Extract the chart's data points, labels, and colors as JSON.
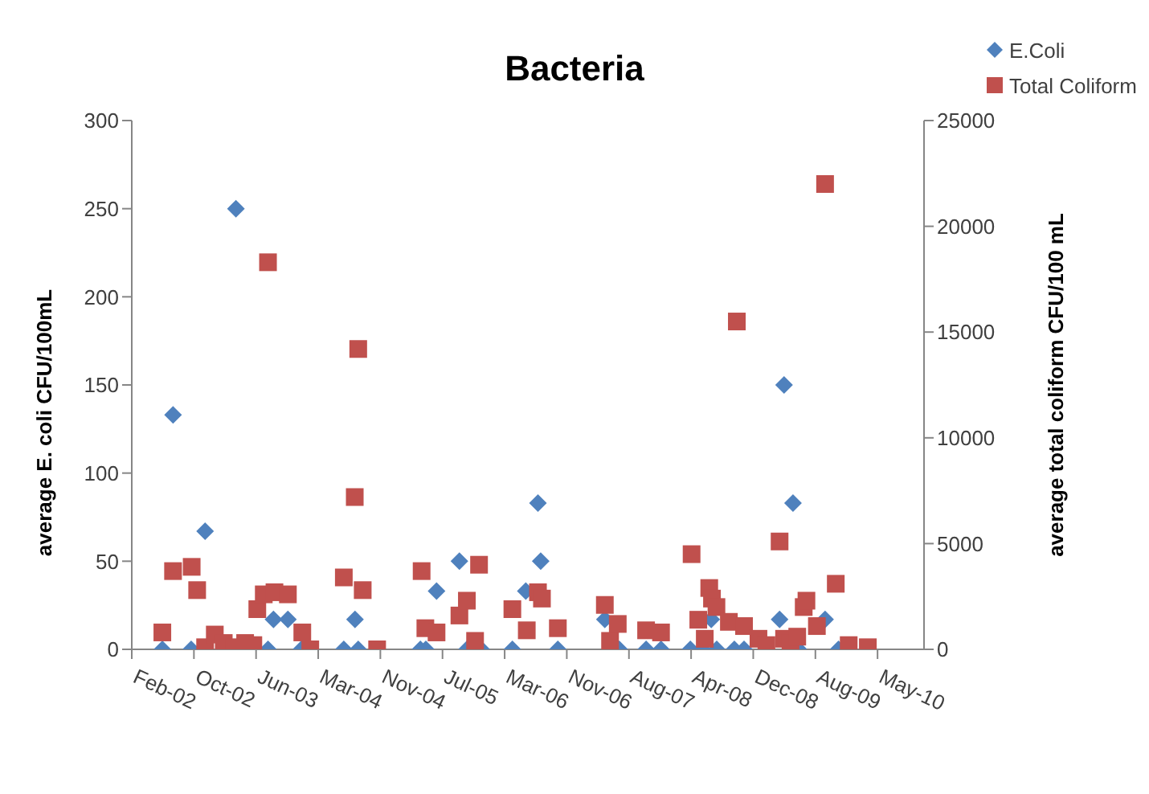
{
  "chart_data": {
    "type": "scatter",
    "title": "Bacteria",
    "ylabel": "average E. coli CFU/100mL",
    "y2label": "average total coliform CFU/100 mL",
    "xlim": [
      "2002-02-12",
      "2010-11-04"
    ],
    "xticks": [
      {
        "value": "2002-02-12",
        "label": "Feb-02"
      },
      {
        "value": "2002-10-20",
        "label": "Oct-02"
      },
      {
        "value": "2003-06-27",
        "label": "Jun-03"
      },
      {
        "value": "2004-03-03",
        "label": "Mar-04"
      },
      {
        "value": "2004-11-08",
        "label": "Nov-04"
      },
      {
        "value": "2005-07-16",
        "label": "Jul-05"
      },
      {
        "value": "2006-03-23",
        "label": "Mar-06"
      },
      {
        "value": "2006-11-28",
        "label": "Nov-06"
      },
      {
        "value": "2007-08-05",
        "label": "Aug-07"
      },
      {
        "value": "2008-04-11",
        "label": "Apr-08"
      },
      {
        "value": "2008-12-17",
        "label": "Dec-08"
      },
      {
        "value": "2009-08-24",
        "label": "Aug-09"
      },
      {
        "value": "2010-05-01",
        "label": "May-10"
      }
    ],
    "ylim": [
      0,
      300
    ],
    "yticks": [
      0,
      50,
      100,
      150,
      200,
      250,
      300
    ],
    "y2lim": [
      0,
      25000
    ],
    "y2ticks": [
      0,
      5000,
      10000,
      15000,
      20000,
      25000
    ],
    "grid": false,
    "legend": "top right",
    "series": [
      {
        "name": "E.Coli",
        "color": "#4f81bd",
        "marker": "diamond",
        "x": [
          "2002-06-15",
          "2002-07-28",
          "2002-10-09",
          "2002-12-04",
          "2003-04-07",
          "2003-08-14",
          "2003-09-05",
          "2003-11-02",
          "2003-12-26",
          "2004-06-14",
          "2004-07-29",
          "2004-08-11",
          "2005-04-18",
          "2005-05-10",
          "2005-06-22",
          "2005-09-22",
          "2005-10-22",
          "2005-12-19",
          "2006-04-23",
          "2006-06-16",
          "2006-08-04",
          "2006-08-15",
          "2006-10-23",
          "2007-04-30",
          "2007-06-27",
          "2007-10-13",
          "2007-12-12",
          "2008-04-08",
          "2008-05-26",
          "2008-07-01",
          "2008-07-23",
          "2008-10-02",
          "2008-11-10",
          "2009-04-02",
          "2009-04-20",
          "2009-05-26",
          "2009-06-17",
          "2009-10-02",
          "2009-11-25"
        ],
        "values": [
          0,
          133,
          0,
          67,
          250,
          0,
          17,
          17,
          0,
          0,
          17,
          0,
          0,
          0,
          33,
          50,
          0,
          0,
          0,
          33,
          83,
          50,
          0,
          17,
          0,
          0,
          0,
          0,
          0,
          17,
          0,
          0,
          0,
          17,
          150,
          83,
          0,
          17,
          0
        ]
      },
      {
        "name": "Total Coliform",
        "color": "#c0504d",
        "marker": "square",
        "axis": "y2",
        "x": [
          "2002-06-15",
          "2002-07-28",
          "2002-10-11",
          "2002-11-02",
          "2002-12-04",
          "2003-01-12",
          "2003-02-17",
          "2003-04-01",
          "2003-05-14",
          "2003-06-16",
          "2003-07-02",
          "2003-07-28",
          "2003-08-14",
          "2003-09-09",
          "2003-11-02",
          "2003-12-30",
          "2004-01-31",
          "2004-06-14",
          "2004-07-28",
          "2004-08-11",
          "2004-08-29",
          "2004-10-26",
          "2005-04-23",
          "2005-05-08",
          "2005-06-22",
          "2005-09-22",
          "2005-10-22",
          "2005-11-24",
          "2005-12-10",
          "2006-04-23",
          "2006-06-20",
          "2006-08-04",
          "2006-08-20",
          "2006-10-23",
          "2007-04-30",
          "2007-05-21",
          "2007-06-21",
          "2007-10-13",
          "2007-12-12",
          "2008-04-13",
          "2008-05-10",
          "2008-06-05",
          "2008-06-23",
          "2008-07-04",
          "2008-07-22",
          "2008-09-10",
          "2008-10-12",
          "2008-11-10",
          "2009-01-07",
          "2009-02-08",
          "2009-04-02",
          "2009-04-20",
          "2009-05-16",
          "2009-06-12",
          "2009-07-08",
          "2009-07-19",
          "2009-08-30",
          "2009-10-02",
          "2009-11-14",
          "2010-01-05",
          "2010-03-23"
        ],
        "values": [
          800,
          3700,
          3900,
          2800,
          100,
          700,
          300,
          100,
          300,
          200,
          1900,
          2600,
          18300,
          2700,
          2600,
          800,
          0,
          3400,
          7200,
          14200,
          2800,
          0,
          3700,
          1000,
          800,
          1600,
          2300,
          400,
          4000,
          1900,
          900,
          2700,
          2400,
          1000,
          2100,
          400,
          1200,
          900,
          800,
          4500,
          1400,
          500,
          2900,
          2400,
          2000,
          1300,
          15500,
          1100,
          500,
          200,
          5100,
          500,
          300,
          600,
          2000,
          2300,
          1100,
          22000,
          3100,
          200,
          100
        ]
      }
    ]
  }
}
